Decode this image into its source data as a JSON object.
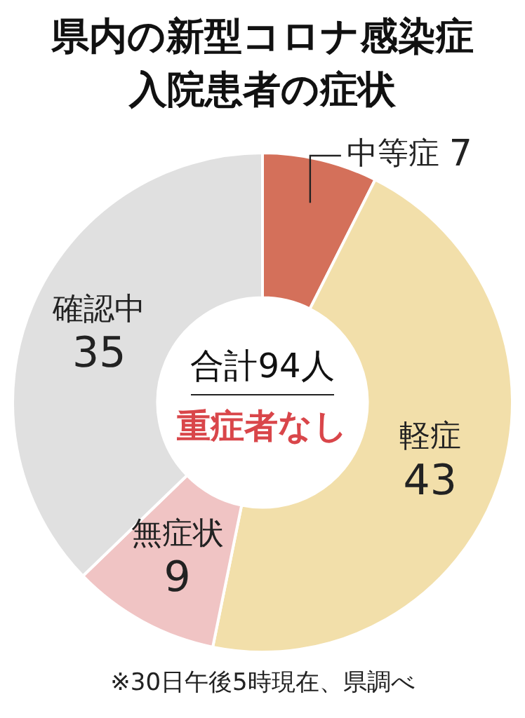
{
  "chart_data": {
    "type": "donut",
    "title": "県内の新型コロナ感染症入院患者の症状",
    "categories": [
      "中等症",
      "軽症",
      "無症状",
      "確認中"
    ],
    "values": [
      7,
      43,
      9,
      35
    ],
    "colors": [
      "#d4705a",
      "#f2dfaa",
      "#f0c4c4",
      "#e0e0e0"
    ],
    "data_labels": true,
    "legend": false,
    "annotations": [
      "合計94人",
      "重症者なし",
      "※30日午後5時現在、県調べ"
    ]
  }
}
